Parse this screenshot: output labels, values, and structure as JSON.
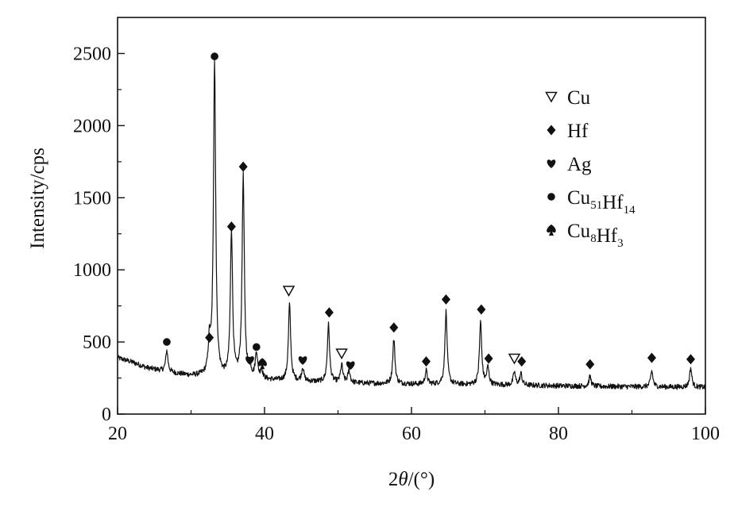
{
  "chart_data": {
    "type": "line",
    "xlabel": {
      "prefix": "2",
      "var": "θ",
      "suffix": "/(°)"
    },
    "ylabel": "Intensity/cps",
    "xlim": [
      20,
      100
    ],
    "ylim": [
      0,
      2750
    ],
    "xticks": [
      20,
      40,
      60,
      80,
      100
    ],
    "yticks": [
      0,
      500,
      1000,
      1500,
      2000,
      2500
    ],
    "grid": false,
    "legend_position": "top-right",
    "legend": [
      {
        "marker": "triangle-down-open",
        "parts": [
          [
            "Cu",
            ""
          ]
        ]
      },
      {
        "marker": "diamond",
        "parts": [
          [
            "Hf",
            ""
          ]
        ]
      },
      {
        "marker": "heart",
        "parts": [
          [
            "Ag",
            ""
          ]
        ]
      },
      {
        "marker": "circle",
        "parts": [
          [
            "Cu",
            "51"
          ],
          [
            "Hf",
            "14"
          ]
        ]
      },
      {
        "marker": "spade",
        "parts": [
          [
            "Cu",
            "8"
          ],
          [
            "Hf",
            "3"
          ]
        ]
      }
    ],
    "baseline": [
      [
        20,
        390
      ],
      [
        22,
        360
      ],
      [
        24,
        320
      ],
      [
        26,
        300
      ],
      [
        28,
        280
      ],
      [
        30,
        265
      ],
      [
        32,
        260
      ],
      [
        34,
        250
      ],
      [
        36,
        245
      ],
      [
        38,
        240
      ],
      [
        42,
        232
      ],
      [
        46,
        225
      ],
      [
        50,
        218
      ],
      [
        55,
        212
      ],
      [
        60,
        208
      ],
      [
        65,
        205
      ],
      [
        70,
        203
      ],
      [
        75,
        200
      ],
      [
        80,
        196
      ],
      [
        85,
        192
      ],
      [
        90,
        190
      ],
      [
        95,
        188
      ],
      [
        100,
        186
      ]
    ],
    "peaks": [
      {
        "x": 26.7,
        "y": 440,
        "phase": "Cu51Hf14"
      },
      {
        "x": 32.5,
        "y": 470,
        "phase": "Hf"
      },
      {
        "x": 33.2,
        "y": 2440,
        "phase": "Cu51Hf14"
      },
      {
        "x": 35.5,
        "y": 1260,
        "phase": "Hf"
      },
      {
        "x": 37.1,
        "y": 1640,
        "phase": "Hf"
      },
      {
        "x": 38.0,
        "y": 320,
        "phase": "Ag"
      },
      {
        "x": 38.9,
        "y": 420,
        "phase": "Cu51Hf14"
      },
      {
        "x": 39.6,
        "y": 300,
        "phase": "Cu8Hf3"
      },
      {
        "x": 43.4,
        "y": 760,
        "phase": "Cu"
      },
      {
        "x": 45.2,
        "y": 320,
        "phase": "Ag"
      },
      {
        "x": 48.7,
        "y": 620,
        "phase": "Hf"
      },
      {
        "x": 50.5,
        "y": 340,
        "phase": "Cu"
      },
      {
        "x": 51.5,
        "y": 300,
        "phase": "Ag"
      },
      {
        "x": 57.6,
        "y": 520,
        "phase": "Hf"
      },
      {
        "x": 62.0,
        "y": 300,
        "phase": "Hf"
      },
      {
        "x": 64.7,
        "y": 710,
        "phase": "Hf"
      },
      {
        "x": 69.4,
        "y": 640,
        "phase": "Hf"
      },
      {
        "x": 70.4,
        "y": 320,
        "phase": "Hf"
      },
      {
        "x": 74.0,
        "y": 290,
        "phase": "Cu"
      },
      {
        "x": 74.9,
        "y": 280,
        "phase": "Hf"
      },
      {
        "x": 84.3,
        "y": 260,
        "phase": "Hf"
      },
      {
        "x": 92.7,
        "y": 300,
        "phase": "Hf"
      },
      {
        "x": 98.0,
        "y": 320,
        "phase": "Hf"
      }
    ],
    "markers": [
      {
        "x": 26.7,
        "y": 500,
        "shape": "circle"
      },
      {
        "x": 32.5,
        "y": 530,
        "shape": "diamond"
      },
      {
        "x": 33.2,
        "y": 2480,
        "shape": "circle"
      },
      {
        "x": 35.5,
        "y": 1300,
        "shape": "diamond"
      },
      {
        "x": 37.1,
        "y": 1715,
        "shape": "diamond"
      },
      {
        "x": 38.0,
        "y": 375,
        "shape": "heart"
      },
      {
        "x": 38.9,
        "y": 465,
        "shape": "circle"
      },
      {
        "x": 39.7,
        "y": 350,
        "shape": "spade"
      },
      {
        "x": 43.3,
        "y": 855,
        "shape": "triangle-down-open"
      },
      {
        "x": 45.2,
        "y": 375,
        "shape": "heart"
      },
      {
        "x": 48.8,
        "y": 705,
        "shape": "diamond"
      },
      {
        "x": 50.5,
        "y": 420,
        "shape": "triangle-down-open"
      },
      {
        "x": 51.7,
        "y": 340,
        "shape": "heart"
      },
      {
        "x": 57.6,
        "y": 600,
        "shape": "diamond"
      },
      {
        "x": 62.0,
        "y": 365,
        "shape": "diamond"
      },
      {
        "x": 64.7,
        "y": 795,
        "shape": "diamond"
      },
      {
        "x": 69.5,
        "y": 725,
        "shape": "diamond"
      },
      {
        "x": 70.5,
        "y": 385,
        "shape": "diamond"
      },
      {
        "x": 74.0,
        "y": 385,
        "shape": "triangle-down-open"
      },
      {
        "x": 75.0,
        "y": 365,
        "shape": "diamond"
      },
      {
        "x": 84.3,
        "y": 345,
        "shape": "diamond"
      },
      {
        "x": 92.7,
        "y": 390,
        "shape": "diamond"
      },
      {
        "x": 98.0,
        "y": 380,
        "shape": "diamond"
      }
    ]
  }
}
